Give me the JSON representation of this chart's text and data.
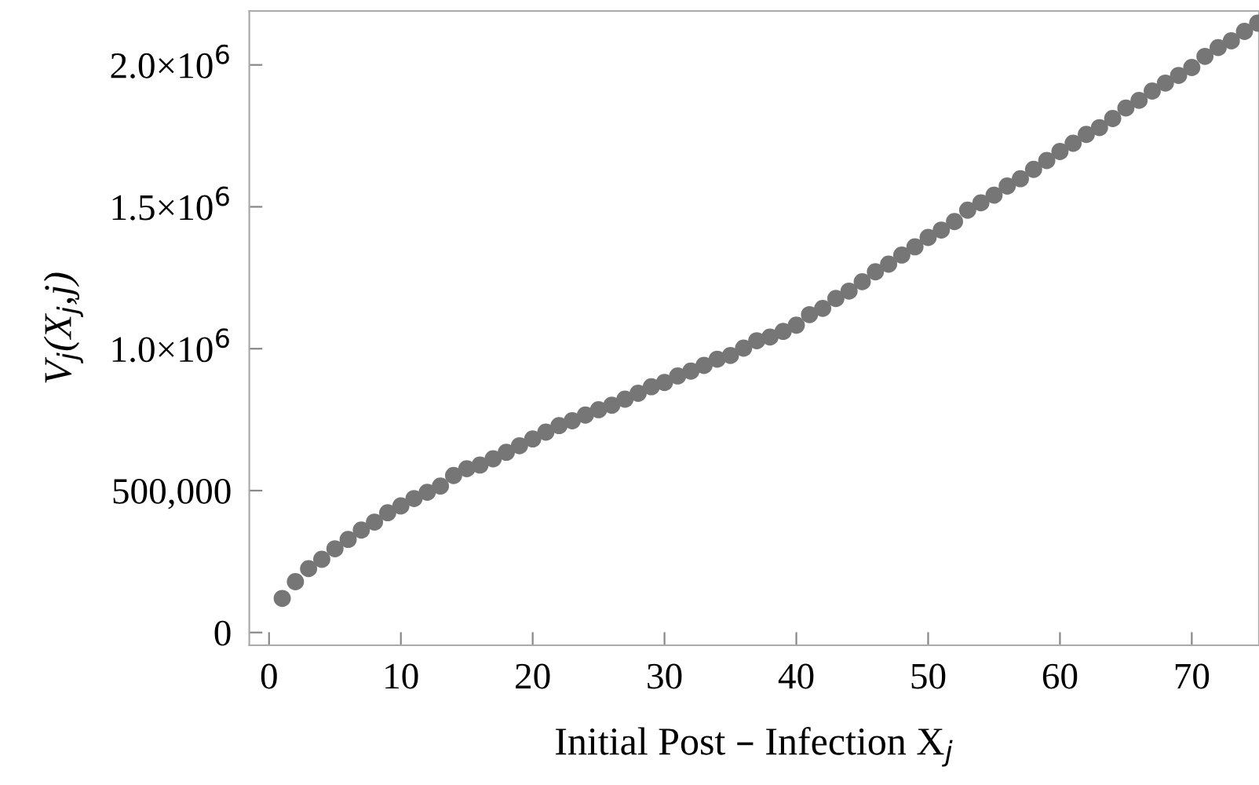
{
  "chart_data": {
    "type": "scatter",
    "xlabel": "Initial Post – Infection X$_{j}$",
    "ylabel": "V$_{j}$(X$_{j}$,j)",
    "x": [
      1,
      2,
      3,
      4,
      5,
      6,
      7,
      8,
      9,
      10,
      11,
      12,
      13,
      14,
      15,
      16,
      17,
      18,
      19,
      20,
      21,
      22,
      23,
      24,
      25,
      26,
      27,
      28,
      29,
      30,
      31,
      32,
      33,
      34,
      35,
      36,
      37,
      38,
      39,
      40,
      41,
      42,
      43,
      44,
      45,
      46,
      47,
      48,
      49,
      50,
      51,
      52,
      53,
      54,
      55,
      56,
      57,
      58,
      59,
      60,
      61,
      62,
      63,
      64,
      65,
      66,
      67,
      68,
      69,
      70,
      71,
      72,
      73,
      74,
      75
    ],
    "series": [
      {
        "color": "#767676",
        "values": [
          120000,
          179000,
          225000,
          258000,
          295000,
          328000,
          361000,
          389000,
          422000,
          446000,
          472000,
          494000,
          516000,
          553000,
          577000,
          590000,
          612000,
          635000,
          658000,
          682000,
          706000,
          729000,
          746000,
          766000,
          785000,
          801000,
          822000,
          843000,
          866000,
          881000,
          904000,
          921000,
          941000,
          963000,
          976000,
          1002000,
          1028000,
          1041000,
          1061000,
          1083000,
          1120000,
          1142000,
          1177000,
          1203000,
          1236000,
          1271000,
          1298000,
          1330000,
          1359000,
          1392000,
          1418000,
          1448000,
          1488000,
          1514000,
          1541000,
          1573000,
          1599000,
          1632000,
          1663000,
          1695000,
          1724000,
          1755000,
          1779000,
          1811000,
          1848000,
          1875000,
          1908000,
          1936000,
          1963000,
          1991000,
          2030000,
          2061000,
          2085000,
          2118000,
          2147000
        ]
      }
    ],
    "marker": "circle",
    "xlim": [
      -1.5,
      75.1
    ],
    "ylim": [
      -45000,
      2190000
    ],
    "xticks": [
      0,
      10,
      20,
      30,
      40,
      50,
      60,
      70
    ],
    "yticks": [
      0,
      {
        "value": 500000,
        "label": "500,000"
      },
      {
        "value": 1000000,
        "label": "1.0×10$^{6}$"
      },
      {
        "value": 1500000,
        "label": "1.5×10$^{6}$"
      },
      {
        "value": 2000000,
        "label": "2.0×10$^{6}$"
      }
    ],
    "grid": false
  }
}
